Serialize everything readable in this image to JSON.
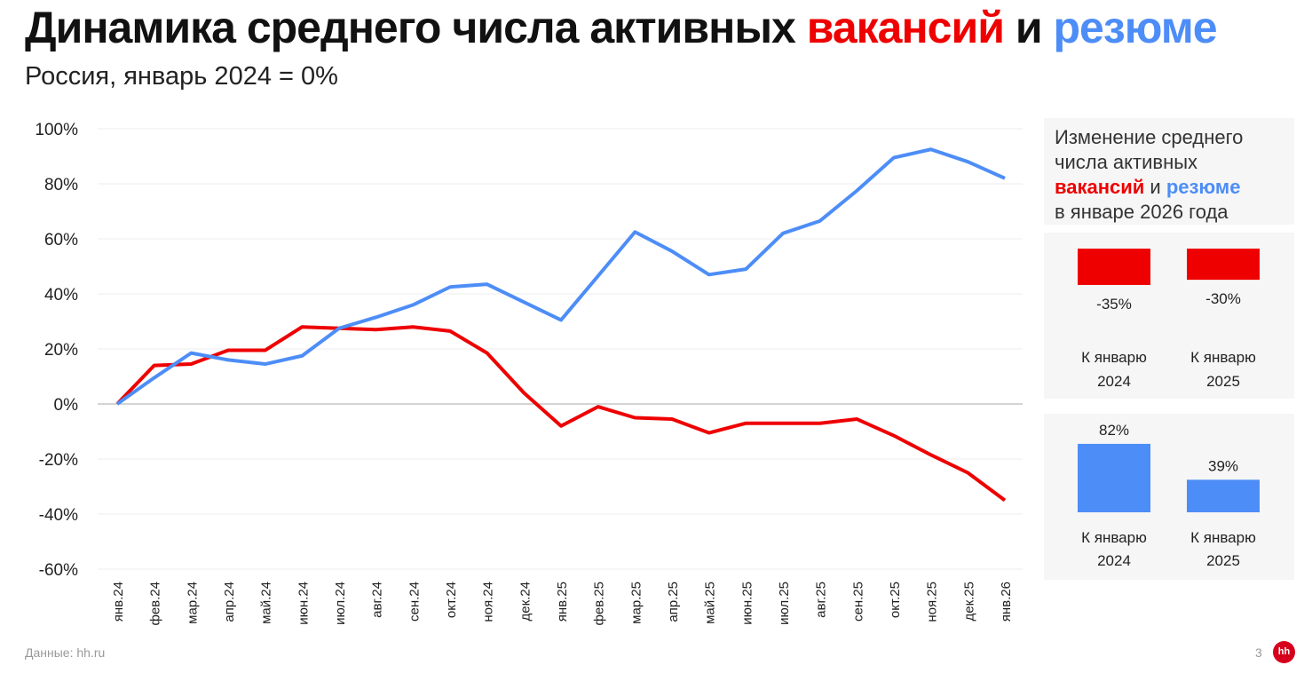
{
  "title": {
    "part1": "Динамика среднего числа активных ",
    "vac": "вакансий",
    "and": " и ",
    "res": "резюме"
  },
  "subtitle": "Россия, январь 2024 = 0%",
  "colors": {
    "vacancies": "#ee0000",
    "resumes": "#4d8df7"
  },
  "chart_data": {
    "type": "line",
    "title": "Динамика среднего числа активных вакансий и резюме",
    "ylim": [
      -60,
      100
    ],
    "yticks": [
      100,
      80,
      60,
      40,
      20,
      0,
      -20,
      -40,
      -60
    ],
    "ytick_labels": [
      "100%",
      "80%",
      "60%",
      "40%",
      "20%",
      "0%",
      "-20%",
      "-40%",
      "-60%"
    ],
    "categories": [
      "янв.24",
      "фев.24",
      "мар.24",
      "апр.24",
      "май.24",
      "июн.24",
      "июл.24",
      "авг.24",
      "сен.24",
      "окт.24",
      "ноя.24",
      "дек.24",
      "янв.25",
      "фев.25",
      "мар.25",
      "апр.25",
      "май.25",
      "июн.25",
      "июл.25",
      "авг.25",
      "сен.25",
      "окт.25",
      "ноя.25",
      "дек.25",
      "янв.26"
    ],
    "series": [
      {
        "name": "вакансии",
        "color": "#ee0000",
        "values": [
          0,
          14,
          14.5,
          19.5,
          19.5,
          28,
          27.5,
          27,
          28,
          26.5,
          18.5,
          4,
          -8,
          -1,
          -5,
          -5.5,
          -10.5,
          -7,
          -7,
          -7,
          -5.5,
          -11.5,
          -18.5,
          -25,
          -35
        ]
      },
      {
        "name": "резюме",
        "color": "#4d8df7",
        "values": [
          0,
          9.5,
          18.5,
          16,
          14.5,
          17.5,
          27.5,
          31.5,
          36,
          42.5,
          43.5,
          37,
          30.5,
          46.5,
          62.5,
          55.5,
          47,
          49,
          62,
          66.5,
          77.5,
          89.5,
          92.5,
          88,
          82
        ]
      }
    ]
  },
  "panel": {
    "line1": "Изменение среднего",
    "line2": "числа активных",
    "vac": "вакансий",
    "and": " и ",
    "res": "резюме",
    "line4": "в январе 2026 года"
  },
  "bars": {
    "vacancies": [
      {
        "value": -35,
        "label": "-35%",
        "cap1": "К январю",
        "cap2": "2024"
      },
      {
        "value": -30,
        "label": "-30%",
        "cap1": "К январю",
        "cap2": "2025"
      }
    ],
    "resumes": [
      {
        "value": 82,
        "label": "82%",
        "cap1": "К январю",
        "cap2": "2024"
      },
      {
        "value": 39,
        "label": "39%",
        "cap1": "К январю",
        "cap2": "2025"
      }
    ]
  },
  "footer": "Данные: hh.ru",
  "page_number": "3",
  "logo": "hh"
}
